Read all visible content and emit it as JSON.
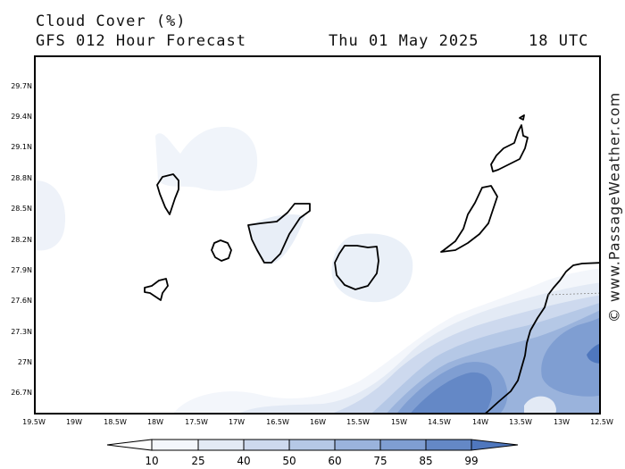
{
  "header": {
    "title": "Cloud Cover (%)",
    "model": "GFS 012 Hour Forecast",
    "date": "Thu 01 May 2025",
    "time": "18 UTC"
  },
  "watermark": "© www.PassageWeather.com",
  "axes": {
    "lat_labels": [
      "29.7N",
      "29.4N",
      "29.1N",
      "28.8N",
      "28.5N",
      "28.2N",
      "27.9N",
      "27.6N",
      "27.3N",
      "27N",
      "26.7N"
    ],
    "lon_labels": [
      "19.5W",
      "19W",
      "18.5W",
      "18W",
      "17.5W",
      "17W",
      "16.5W",
      "16W",
      "15.5W",
      "15W",
      "14.5W",
      "14W",
      "13.5W",
      "13W",
      "12.5W"
    ]
  },
  "colorbar": {
    "levels": [
      "10",
      "25",
      "40",
      "50",
      "60",
      "75",
      "85",
      "99"
    ],
    "colors": [
      "#f3f6fb",
      "#e3eaf5",
      "#cdd9ee",
      "#b5c8e6",
      "#9ab3dc",
      "#7f9ed2",
      "#6488c6",
      "#4f77bd"
    ]
  },
  "map": {
    "region": "Canary Islands",
    "variable": "cloud cover (%)",
    "coastline_color": "#000000"
  }
}
